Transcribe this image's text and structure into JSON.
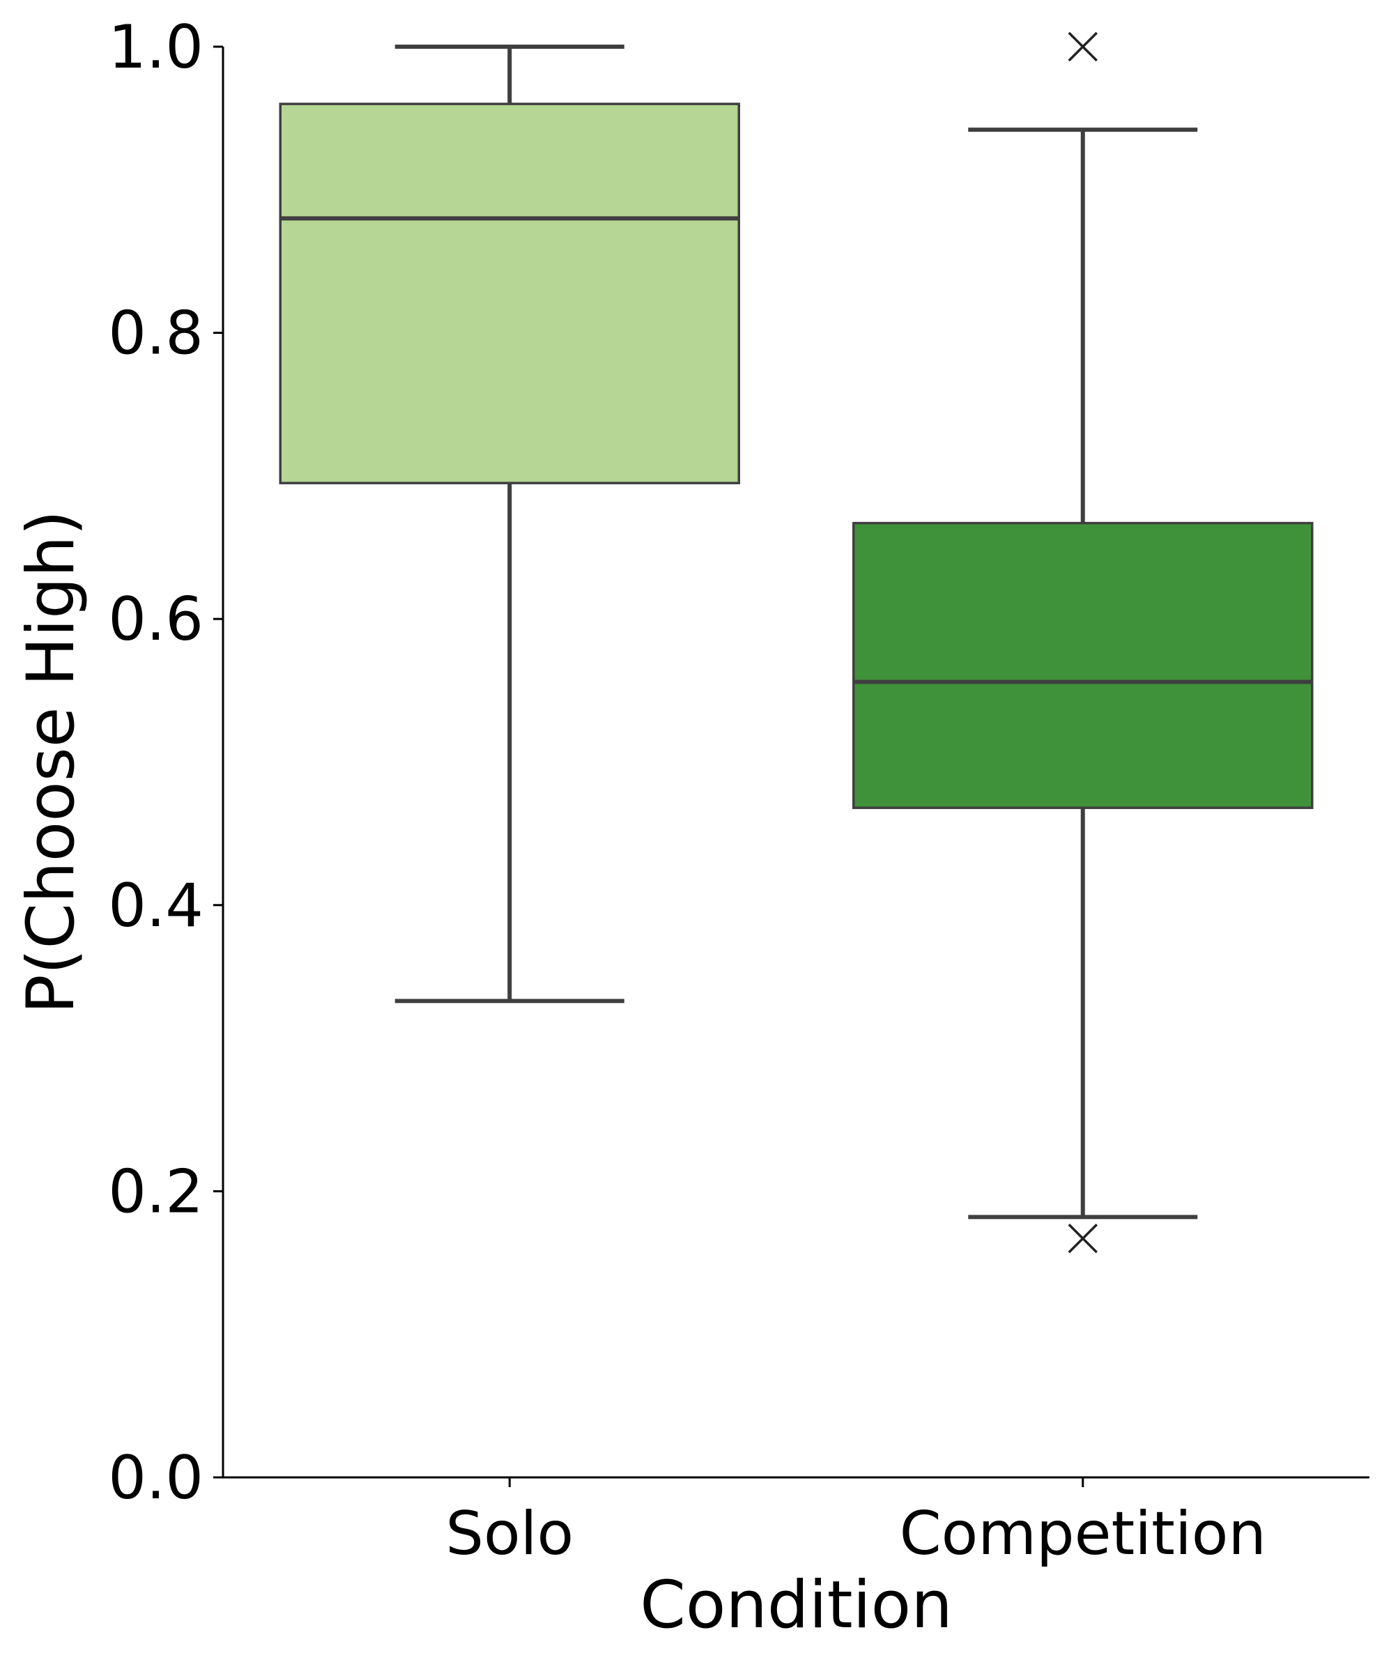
{
  "chart_data": {
    "type": "box",
    "xlabel": "Condition",
    "ylabel": "P(Choose High)",
    "ylim": [
      0,
      1
    ],
    "yticks": [
      "0.0",
      "0.2",
      "0.4",
      "0.6",
      "0.8",
      "1.0"
    ],
    "grid": false,
    "categories": [
      "Solo",
      "Competition"
    ],
    "boxes": [
      {
        "name": "Solo",
        "color": "#b5d695",
        "whisker_low": 0.333,
        "q1": 0.695,
        "median": 0.88,
        "q3": 0.96,
        "whisker_high": 1.0,
        "outliers": []
      },
      {
        "name": "Competition",
        "color": "#40923a",
        "whisker_low": 0.182,
        "q1": 0.468,
        "median": 0.556,
        "q3": 0.667,
        "whisker_high": 0.942,
        "outliers": [
          1.0,
          0.167
        ]
      }
    ]
  }
}
